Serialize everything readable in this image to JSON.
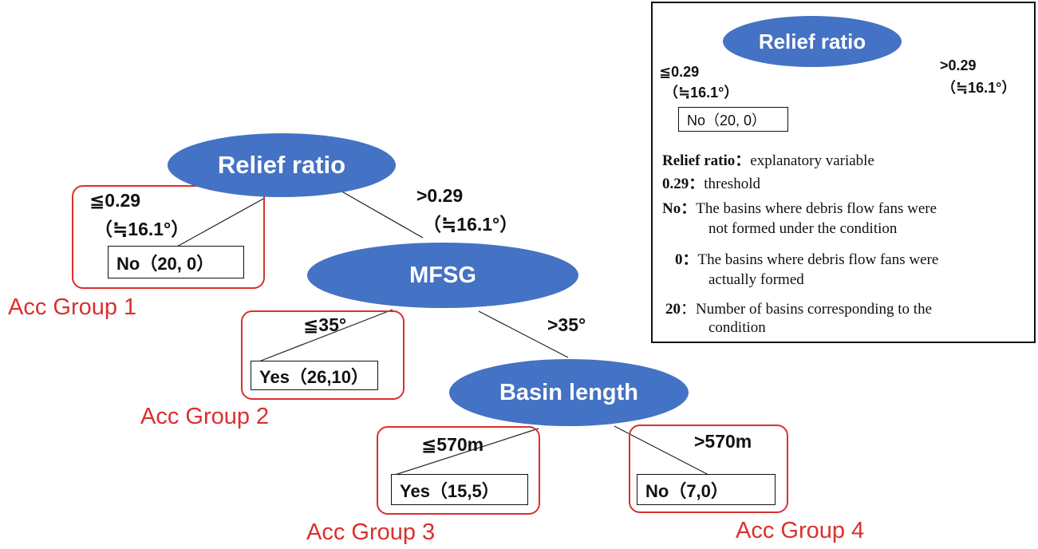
{
  "colors": {
    "node_fill": "#4472c4",
    "group_border": "#d9312e",
    "line": "#222222"
  },
  "tree": {
    "root": {
      "label": "Relief ratio",
      "left_cond_1": "≦0.29",
      "left_cond_2": "（≒16.1°）",
      "right_cond_1": ">0.29",
      "right_cond_2": "（≒16.1°）"
    },
    "node_mfsg": {
      "label": "MFSG",
      "left_cond": "≦35°",
      "right_cond": ">35°"
    },
    "node_basin": {
      "label": "Basin length",
      "left_cond": "≦570m",
      "right_cond": ">570m"
    },
    "leaves": [
      {
        "text": "No（20, 0）",
        "group": "Acc Group 1"
      },
      {
        "text": "Yes（26,10）",
        "group": "Acc Group 2"
      },
      {
        "text": "Yes（15,5）",
        "group": "Acc Group 3"
      },
      {
        "text": "No（7,0）",
        "group": "Acc Group 4"
      }
    ]
  },
  "legend": {
    "node_label": "Relief ratio",
    "left_cond_1": "≦0.29",
    "left_cond_2": "（≒16.1°）",
    "right_cond_1": ">0.29",
    "right_cond_2": "（≒16.1°）",
    "leaf_text": "No（20, 0）",
    "lines": [
      {
        "key": "Relief ratio：",
        "text": "explanatory variable"
      },
      {
        "key": "0.29：",
        "text": "threshold"
      },
      {
        "key": "No：",
        "text": "The basins where debris flow fans were"
      },
      {
        "key": "",
        "text": "not formed under the condition"
      },
      {
        "key": "0：",
        "text": "The basins where debris flow fans were"
      },
      {
        "key": "",
        "text": "actually formed"
      },
      {
        "key": "20",
        "text": "：Number of basins corresponding to the"
      },
      {
        "key": "",
        "text": "condition"
      }
    ]
  }
}
